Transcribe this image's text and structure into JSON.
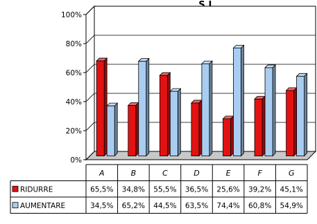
{
  "chart_data": {
    "type": "bar",
    "title": "S.L.",
    "categories": [
      "A",
      "B",
      "C",
      "D",
      "E",
      "F",
      "G"
    ],
    "y_ticks": [
      "0%",
      "20%",
      "40%",
      "60%",
      "80%",
      "100%"
    ],
    "ylim": [
      0,
      100
    ],
    "grid": true,
    "legend": "data-table",
    "series": [
      {
        "name": "RIDURRE",
        "values": [
          65.5,
          34.8,
          55.5,
          36.5,
          25.6,
          39.2,
          45.1
        ],
        "labels": [
          "65,5%",
          "34,8%",
          "55,5%",
          "36,5%",
          "25,6%",
          "39,2%",
          "45,1%"
        ],
        "color": "#e31212"
      },
      {
        "name": "AUMENTARE",
        "values": [
          34.5,
          65.2,
          44.5,
          63.5,
          74.4,
          60.8,
          54.9
        ],
        "labels": [
          "34,5%",
          "65,2%",
          "44,5%",
          "63,5%",
          "74,4%",
          "60,8%",
          "54,9%"
        ],
        "color": "#a9cdf0"
      }
    ]
  }
}
